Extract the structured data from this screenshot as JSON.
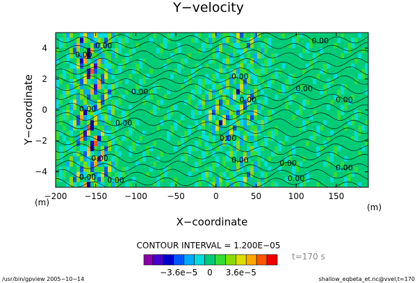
{
  "chart_data": {
    "type": "heatmap",
    "title": "Y−velocity",
    "xlabel": "X−coordinate",
    "ylabel": "Y−coordinate",
    "x_unit": "(m)",
    "y_unit": "(m)",
    "xlim": [
      -200,
      190
    ],
    "ylim": [
      -5,
      5
    ],
    "x_ticks": [
      "−200",
      "−150",
      "−100",
      "−50",
      "0",
      "50",
      "100",
      "150"
    ],
    "x_tick_values": [
      -200,
      -150,
      -100,
      -50,
      0,
      50,
      100,
      150
    ],
    "y_ticks": [
      "4",
      "2",
      "0",
      "−2",
      "−4"
    ],
    "y_tick_values": [
      4,
      2,
      0,
      -2,
      -4
    ],
    "contour_interval_text": "CONTOUR INTERVAL = 1.200E−05",
    "contour_interval": 1.2e-05,
    "contour_label": "0.00",
    "time_label": "t=170 s",
    "colorbar": {
      "tick_labels": [
        "−3.6e−5",
        "0",
        "3.6e−5"
      ],
      "tick_values": [
        -3.6e-05,
        0,
        3.6e-05
      ],
      "colors": [
        "#8800aa",
        "#4400cc",
        "#0000cc",
        "#0055ff",
        "#00aaff",
        "#00dddd",
        "#00cc77",
        "#33dd33",
        "#88dd00",
        "#dddd00",
        "#ffaa00",
        "#ff5500",
        "#ee0000"
      ]
    },
    "grid": false
  },
  "footer": {
    "left": "/usr/bin/gpview  2005−10−14",
    "right": "shallow_eqbeta_et.nc@vvel,t=170"
  }
}
